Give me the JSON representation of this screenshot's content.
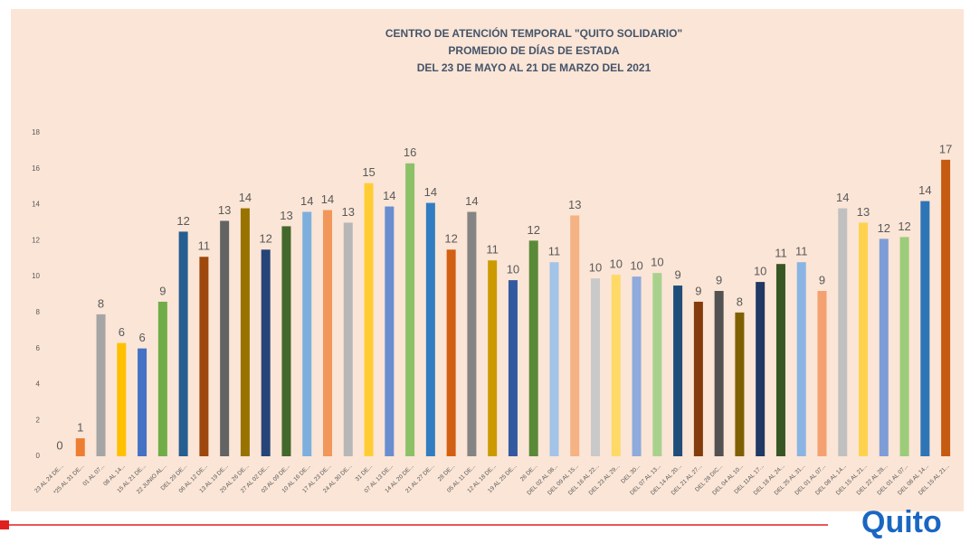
{
  "chart_data": {
    "type": "bar",
    "title": "CENTRO DE ATENCIÓN TEMPORAL \"QUITO SOLIDARIO\"",
    "subtitle": [
      "PROMEDIO DE DÍAS DE ESTADA",
      "DEL 23 DE MAYO AL 21 DE MARZO DEL 2021"
    ],
    "categories": [
      "23 AL 24 DE...",
      "*25 AL 31 DE...",
      "01 AL 07...",
      "08 AL 14...",
      "15 AL 21 DE...",
      "22 JUNIO AL...",
      "DEL 29 DE...",
      "06 AL 12 DE...",
      "13 AL 19 DE...",
      "20 AL 26 DE...",
      "27 AL 02 DE...",
      "03 AL 09 DE...",
      "10 AL 16 DE...",
      "17 AL 23 DE...",
      "24 AL 30 DE...",
      "31 DE...",
      "07 AL 13 DE...",
      "14 AL 20 DE...",
      "21 AL 27 DE...",
      "28 DE...",
      "05 AL 11 DE...",
      "12 AL 18 DE...",
      "19 AL 25 DE...",
      "26 DE...",
      "DEL 02 AL 08...",
      "DEL 09 AL 15...",
      "DEL 16 AL 22...",
      "DEL 23 AL 29...",
      "DEL 30...",
      "DEL 07 AL 13...",
      "DEL 14 AL 20...",
      "DEL 21 AL 27...",
      "DEL 28 DIC...",
      "DEL 04 AL 10...",
      "DEL 11AL 17...",
      "DEL 18 AL 24...",
      "DEL 25 AL 31...",
      "DEL 01 AL 07...",
      "DEL 08 AL 14...",
      "DEL 15 AL 21...",
      "DEL 22 AL 28...",
      "DEL 01 AL 07...",
      "DEL 08 AL 14...",
      "DEL 15 AL 21..."
    ],
    "values": [
      0,
      1,
      7.9,
      6.3,
      6.0,
      8.6,
      12.5,
      11.1,
      13.1,
      13.8,
      11.5,
      12.8,
      13.6,
      13.7,
      13.0,
      15.2,
      13.9,
      16.3,
      14.1,
      11.5,
      13.6,
      10.9,
      9.8,
      12.0,
      10.8,
      13.4,
      9.9,
      10.1,
      10.0,
      10.2,
      9.5,
      8.6,
      9.2,
      8.0,
      9.7,
      10.7,
      10.8,
      9.2,
      13.8,
      13.0,
      12.1,
      12.2,
      14.2,
      16.5
    ],
    "value_labels": [
      "0",
      "1",
      "8",
      "6",
      "6",
      "9",
      "12",
      "11",
      "13",
      "14",
      "12",
      "13",
      "14",
      "14",
      "13",
      "15",
      "14",
      "16",
      "14",
      "12",
      "14",
      "11",
      "10",
      "12",
      "11",
      "13",
      "10",
      "10",
      "10",
      "10",
      "9",
      "9",
      "9",
      "8",
      "10",
      "11",
      "11",
      "9",
      "14",
      "13",
      "12",
      "12",
      "14",
      "17"
    ],
    "colors": [
      "#4472c4",
      "#ed7d31",
      "#a5a5a5",
      "#ffc000",
      "#4472c4",
      "#70ad47",
      "#255e91",
      "#9e480e",
      "#636363",
      "#997300",
      "#264478",
      "#43682b",
      "#7cafdd",
      "#f1975a",
      "#b7b7b7",
      "#ffcd33",
      "#698ed0",
      "#8cc168",
      "#327dc2",
      "#d26012",
      "#848484",
      "#cc9a00",
      "#335aa1",
      "#5a8a38",
      "#a3c3e8",
      "#f5b283",
      "#c9c9c9",
      "#ffd966",
      "#8faadc",
      "#a9d18e",
      "#1f4e79",
      "#843c0c",
      "#525252",
      "#7f6000",
      "#203864",
      "#375623",
      "#8ab4e3",
      "#f4a070",
      "#c0c0c0",
      "#ffd24d",
      "#7e9dd6",
      "#9ccc7a",
      "#2e75b6",
      "#c55a11"
    ],
    "ylim": [
      0,
      18
    ],
    "yticks": [
      0,
      2,
      4,
      6,
      8,
      10,
      12,
      14,
      16,
      18
    ],
    "grid": false
  },
  "logo": "Quito"
}
